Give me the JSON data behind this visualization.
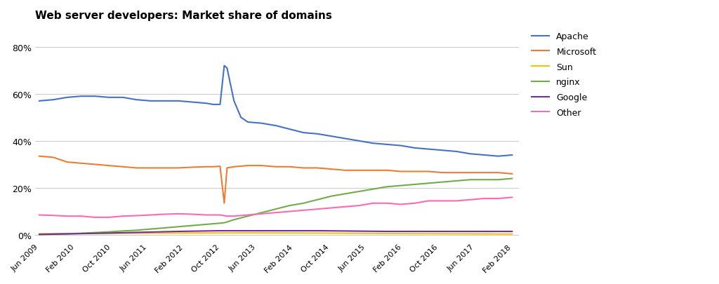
{
  "title": "Web server developers: Market share of domains",
  "title_fontsize": 11,
  "title_fontweight": "bold",
  "series": {
    "Apache": {
      "color": "#4472C4",
      "data": [
        [
          0,
          57
        ],
        [
          1,
          57.5
        ],
        [
          2,
          58.5
        ],
        [
          3,
          59
        ],
        [
          4,
          59
        ],
        [
          5,
          58.5
        ],
        [
          6,
          58.5
        ],
        [
          7,
          57.5
        ],
        [
          8,
          57
        ],
        [
          9,
          57
        ],
        [
          10,
          57
        ],
        [
          11,
          56.5
        ],
        [
          12,
          56
        ],
        [
          12.5,
          55.5
        ],
        [
          13,
          55.5
        ],
        [
          13.3,
          72
        ],
        [
          13.5,
          71
        ],
        [
          14,
          57
        ],
        [
          14.5,
          50
        ],
        [
          15,
          48
        ],
        [
          16,
          47.5
        ],
        [
          17,
          46.5
        ],
        [
          18,
          45
        ],
        [
          19,
          43.5
        ],
        [
          20,
          43
        ],
        [
          21,
          42
        ],
        [
          22,
          41
        ],
        [
          23,
          40
        ],
        [
          24,
          39
        ],
        [
          25,
          38.5
        ],
        [
          26,
          38
        ],
        [
          27,
          37
        ],
        [
          28,
          36.5
        ],
        [
          29,
          36
        ],
        [
          30,
          35.5
        ],
        [
          31,
          34.5
        ],
        [
          32,
          34
        ],
        [
          33,
          33.5
        ],
        [
          34,
          34
        ]
      ]
    },
    "Microsoft": {
      "color": "#ED7D31",
      "data": [
        [
          0,
          33.5
        ],
        [
          1,
          33
        ],
        [
          2,
          31
        ],
        [
          3,
          30.5
        ],
        [
          4,
          30
        ],
        [
          5,
          29.5
        ],
        [
          6,
          29
        ],
        [
          7,
          28.5
        ],
        [
          8,
          28.5
        ],
        [
          9,
          28.5
        ],
        [
          10,
          28.5
        ],
        [
          11,
          28.8
        ],
        [
          12,
          29
        ],
        [
          12.5,
          29
        ],
        [
          13,
          29.2
        ],
        [
          13.3,
          13.5
        ],
        [
          13.5,
          28.5
        ],
        [
          14,
          29
        ],
        [
          15,
          29.5
        ],
        [
          16,
          29.5
        ],
        [
          17,
          29
        ],
        [
          18,
          29
        ],
        [
          19,
          28.5
        ],
        [
          20,
          28.5
        ],
        [
          21,
          28
        ],
        [
          22,
          27.5
        ],
        [
          23,
          27.5
        ],
        [
          24,
          27.5
        ],
        [
          25,
          27.5
        ],
        [
          26,
          27
        ],
        [
          27,
          27
        ],
        [
          28,
          27
        ],
        [
          29,
          26.5
        ],
        [
          30,
          26.5
        ],
        [
          31,
          26.5
        ],
        [
          32,
          26.5
        ],
        [
          33,
          26.5
        ],
        [
          34,
          26
        ]
      ]
    },
    "Sun": {
      "color": "#FFC000",
      "data": [
        [
          0,
          0.5
        ],
        [
          5,
          0.7
        ],
        [
          10,
          0.8
        ],
        [
          15,
          0.9
        ],
        [
          20,
          0.8
        ],
        [
          25,
          0.6
        ],
        [
          30,
          0.5
        ],
        [
          34,
          0.4
        ]
      ]
    },
    "nginx": {
      "color": "#70AD47",
      "data": [
        [
          0,
          0.3
        ],
        [
          1,
          0.4
        ],
        [
          2,
          0.5
        ],
        [
          3,
          0.7
        ],
        [
          4,
          1.0
        ],
        [
          5,
          1.3
        ],
        [
          6,
          1.7
        ],
        [
          7,
          2.0
        ],
        [
          8,
          2.5
        ],
        [
          9,
          3.0
        ],
        [
          10,
          3.5
        ],
        [
          11,
          4.0
        ],
        [
          12,
          4.5
        ],
        [
          13,
          5.0
        ],
        [
          13.3,
          5.2
        ],
        [
          13.5,
          5.5
        ],
        [
          14,
          6.5
        ],
        [
          15,
          8.0
        ],
        [
          16,
          9.5
        ],
        [
          17,
          11.0
        ],
        [
          18,
          12.5
        ],
        [
          19,
          13.5
        ],
        [
          20,
          15.0
        ],
        [
          21,
          16.5
        ],
        [
          22,
          17.5
        ],
        [
          23,
          18.5
        ],
        [
          24,
          19.5
        ],
        [
          25,
          20.5
        ],
        [
          26,
          21.0
        ],
        [
          27,
          21.5
        ],
        [
          28,
          22.0
        ],
        [
          29,
          22.5
        ],
        [
          30,
          23.0
        ],
        [
          31,
          23.5
        ],
        [
          32,
          23.5
        ],
        [
          33,
          23.5
        ],
        [
          34,
          24
        ]
      ]
    },
    "Google": {
      "color": "#7030A0",
      "data": [
        [
          0,
          0.2
        ],
        [
          5,
          0.8
        ],
        [
          10,
          1.5
        ],
        [
          13,
          1.8
        ],
        [
          15,
          1.8
        ],
        [
          20,
          1.8
        ],
        [
          25,
          1.5
        ],
        [
          30,
          1.5
        ],
        [
          34,
          1.5
        ]
      ]
    },
    "Other": {
      "color": "#FF69B4",
      "data": [
        [
          0,
          8.5
        ],
        [
          1,
          8.3
        ],
        [
          2,
          8.0
        ],
        [
          3,
          8.0
        ],
        [
          4,
          7.5
        ],
        [
          5,
          7.5
        ],
        [
          6,
          8.0
        ],
        [
          7,
          8.2
        ],
        [
          8,
          8.5
        ],
        [
          9,
          8.8
        ],
        [
          10,
          9.0
        ],
        [
          11,
          8.8
        ],
        [
          12,
          8.5
        ],
        [
          13,
          8.5
        ],
        [
          13.3,
          8.2
        ],
        [
          13.5,
          8.0
        ],
        [
          14,
          8.0
        ],
        [
          15,
          8.5
        ],
        [
          16,
          9.0
        ],
        [
          17,
          9.5
        ],
        [
          18,
          10.0
        ],
        [
          19,
          10.5
        ],
        [
          20,
          11.0
        ],
        [
          21,
          11.5
        ],
        [
          22,
          12.0
        ],
        [
          23,
          12.5
        ],
        [
          24,
          13.5
        ],
        [
          25,
          13.5
        ],
        [
          26,
          13.0
        ],
        [
          27,
          13.5
        ],
        [
          28,
          14.5
        ],
        [
          29,
          14.5
        ],
        [
          30,
          14.5
        ],
        [
          31,
          15.0
        ],
        [
          32,
          15.5
        ],
        [
          33,
          15.5
        ],
        [
          34,
          16.0
        ]
      ]
    }
  },
  "xtick_count": 14,
  "xtick_labels": [
    "Jun 2009",
    "Feb 2010",
    "Oct 2010",
    "Jun 2011",
    "Feb 2012",
    "Oct 2012",
    "Jun 2013",
    "Feb 2014",
    "Oct 2014",
    "Jun 2015",
    "Feb 2016",
    "Oct 2016",
    "Jun 2017",
    "Feb 2018"
  ],
  "ytick_labels": [
    "0%",
    "20%",
    "40%",
    "60%",
    "80%"
  ],
  "ytick_values": [
    0,
    20,
    40,
    60,
    80
  ],
  "ylim": [
    -2,
    88
  ],
  "xlim": [
    -0.3,
    34.5
  ],
  "bg_color": "#FFFFFF",
  "grid_color": "#CCCCCC",
  "legend_order": [
    "Apache",
    "Microsoft",
    "Sun",
    "nginx",
    "Google",
    "Other"
  ]
}
